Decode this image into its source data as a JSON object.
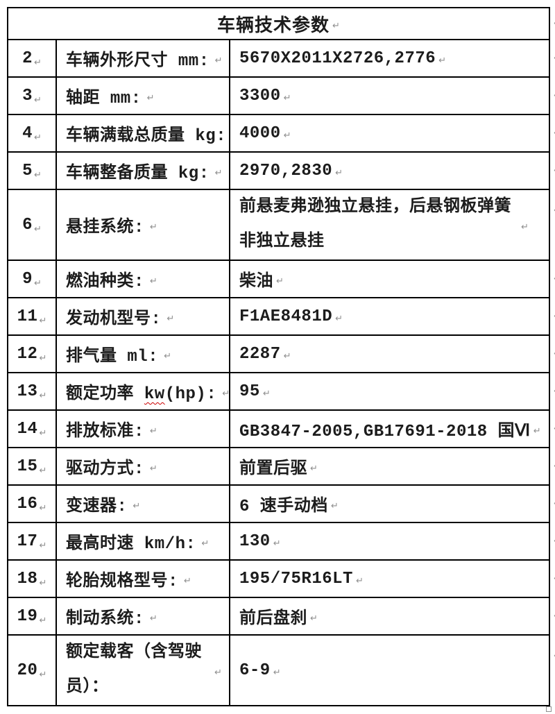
{
  "table": {
    "title": "车辆技术参数",
    "rows": [
      {
        "num": "2",
        "label": "车辆外形尺寸 mm:",
        "value": "5670X2011X2726,2776"
      },
      {
        "num": "3",
        "label": "轴距 mm:",
        "value": "3300"
      },
      {
        "num": "4",
        "label": "车辆满载总质量 kg:",
        "value": "4000"
      },
      {
        "num": "5",
        "label": "车辆整备质量 kg:",
        "value": "2970,2830"
      },
      {
        "num": "6",
        "label": "悬挂系统:",
        "value": "前悬麦弗逊独立悬挂，后悬钢板弹簧非独立悬挂"
      },
      {
        "num": "9",
        "label": "燃油种类:",
        "value": "柴油"
      },
      {
        "num": "11",
        "label": "发动机型号:",
        "value": "F1AE8481D"
      },
      {
        "num": "12",
        "label": "排气量 ml:",
        "value": "2287"
      },
      {
        "num": "13",
        "label_pre": "额定功率 ",
        "label_kw": "kw",
        "label_post": "(hp): ",
        "value": "95"
      },
      {
        "num": "14",
        "label": "排放标准:",
        "value": "GB3847-2005,GB17691-2018 国Ⅵ"
      },
      {
        "num": "15",
        "label": "驱动方式:",
        "value": "前置后驱"
      },
      {
        "num": "16",
        "label": "变速器:",
        "value": "6 速手动档"
      },
      {
        "num": "17",
        "label": "最高时速 km/h:",
        "value": "130"
      },
      {
        "num": "18",
        "label": "轮胎规格型号:",
        "value": "195/75R16LT"
      },
      {
        "num": "19",
        "label": "制动系统:",
        "value": "前后盘刹"
      },
      {
        "num": "20",
        "label": "额定载客（含驾驶员）：",
        "value": "6-9"
      }
    ]
  },
  "marks": {
    "paragraph_mark": "↵"
  },
  "colors": {
    "border": "#000000",
    "text": "#1c1c1c",
    "paragraph_mark": "#8f8f8f",
    "spellcheck_underline": "#cc0000",
    "background": "#ffffff"
  }
}
